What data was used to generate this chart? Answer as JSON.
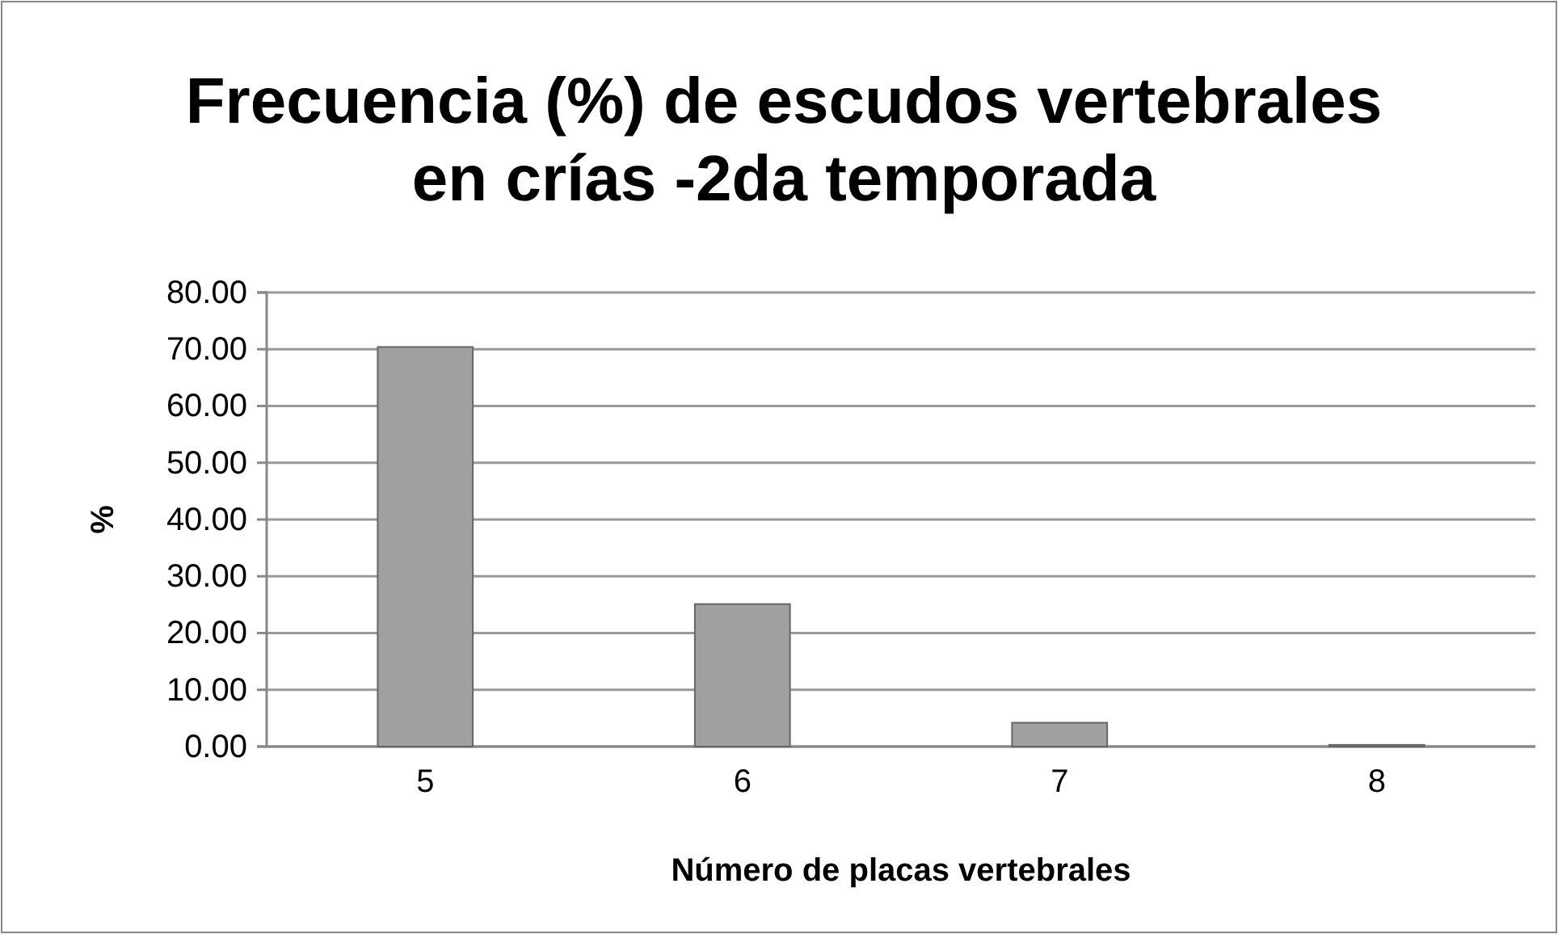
{
  "chart_data": {
    "type": "bar",
    "title": "Frecuencia (%) de escudos vertebrales en crías -2da temporada",
    "xlabel": "Número de placas vertebrales",
    "ylabel": "%",
    "categories": [
      "5",
      "6",
      "7",
      "8"
    ],
    "values": [
      70.4,
      25.1,
      4.2,
      0.3
    ],
    "color": "#a0a0a0",
    "ylim": [
      0,
      80
    ],
    "yticks": [
      {
        "value": 0,
        "label": "0.00"
      },
      {
        "value": 10,
        "label": "10.00"
      },
      {
        "value": 20,
        "label": "20.00"
      },
      {
        "value": 30,
        "label": "30.00"
      },
      {
        "value": 40,
        "label": "40.00"
      },
      {
        "value": 50,
        "label": "50.00"
      },
      {
        "value": 60,
        "label": "60.00"
      },
      {
        "value": 70,
        "label": "70.00"
      },
      {
        "value": 80,
        "label": "80.00"
      }
    ],
    "grid": "y"
  }
}
